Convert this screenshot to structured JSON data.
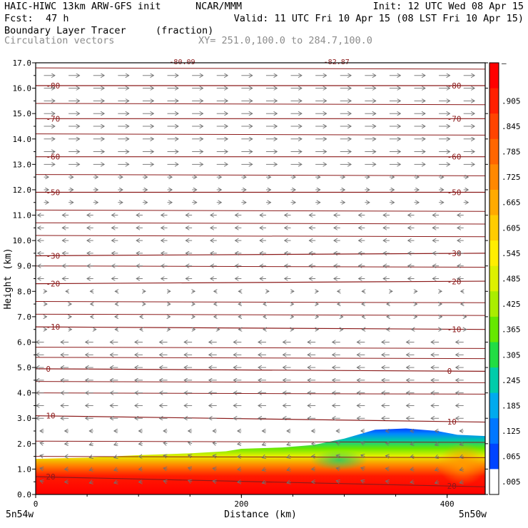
{
  "header": {
    "model": "HAIC-HIWC 13km ARW-GFS init",
    "org": "NCAR/MMM",
    "init": "Init: 12 UTC Wed 08 Apr 15",
    "fcst_label": "Fcst:",
    "fcst_value": "47 h",
    "valid": "Valid: 11 UTC Fri 10 Apr 15 (08 LST Fri 10 Apr 15)",
    "field": "Boundary Layer Tracer",
    "field_unit": "(fraction)",
    "vectors": "Circulation vectors",
    "xy": "XY= 251.0,100.0 to 284.7,100.0"
  },
  "chart_data": {
    "type": "heatmap",
    "xlabel": "Distance (km)",
    "ylabel": "Height (km)",
    "xlim": [
      0,
      437
    ],
    "ylim": [
      0,
      17
    ],
    "x_ticks": [
      0,
      200,
      400
    ],
    "y_ticks": [
      "0.0",
      "1.0",
      "2.0",
      "3.0",
      "4.0",
      "5.0",
      "6.0",
      "7.0",
      "8.0",
      "9.0",
      "10.0",
      "11.0",
      "12.0",
      "13.0",
      "14.0",
      "15.0",
      "16.0",
      "17.0"
    ],
    "x_endpoints": {
      "left": "5n54w",
      "right": "5n50w"
    },
    "colorbar": {
      "labels": [
        "–",
        ".905",
        ".845",
        ".785",
        ".725",
        ".665",
        ".605",
        ".545",
        ".485",
        ".425",
        ".365",
        ".305",
        ".245",
        ".185",
        ".125",
        ".065",
        ".005"
      ],
      "colors": [
        "#ff0000",
        "#ff2000",
        "#ff4400",
        "#ff6600",
        "#ff8800",
        "#ffaa00",
        "#ffcc00",
        "#ffee00",
        "#ddf000",
        "#aaee00",
        "#66e800",
        "#22dd44",
        "#00ccaa",
        "#00aaee",
        "#0077ff",
        "#0044ff",
        "#ffffff"
      ]
    },
    "isotherms": [
      {
        "label": "-80",
        "height": 16.1,
        "tilt": 0.0
      },
      {
        "label": "-70",
        "height": 14.8,
        "tilt": 0.0
      },
      {
        "label": "-60",
        "height": 13.3,
        "tilt": 0.0
      },
      {
        "label": "-50",
        "height": 11.9,
        "tilt": 0.0
      },
      {
        "label": "-30",
        "height": 9.4,
        "tilt": -0.1
      },
      {
        "label": "-20",
        "height": 8.3,
        "tilt": -0.1
      },
      {
        "label": "-10",
        "height": 6.6,
        "tilt": 0.1
      },
      {
        "label": "0",
        "height": 4.95,
        "tilt": 0.1
      },
      {
        "label": "10",
        "height": 3.1,
        "tilt": 0.25
      },
      {
        "label": "20",
        "height": 0.7,
        "tilt": 0.4
      }
    ],
    "extra_contour_labels": [
      "-80.09",
      "-82.87"
    ],
    "unlabeled_contour_heights": [
      16.8,
      15.4,
      14.2,
      12.6,
      11.2,
      10.7,
      10.2,
      9.0,
      7.6,
      7.1,
      5.8,
      5.4,
      4.45,
      4.0,
      2.1,
      1.5
    ],
    "boundary_layer_top": [
      [
        0,
        1.4
      ],
      [
        50,
        1.45
      ],
      [
        100,
        1.55
      ],
      [
        150,
        1.62
      ],
      [
        185,
        1.7
      ],
      [
        200,
        1.8
      ],
      [
        240,
        1.85
      ],
      [
        270,
        1.95
      ],
      [
        300,
        2.2
      ],
      [
        330,
        2.55
      ],
      [
        360,
        2.6
      ],
      [
        390,
        2.5
      ],
      [
        410,
        2.35
      ],
      [
        437,
        2.3
      ]
    ]
  }
}
